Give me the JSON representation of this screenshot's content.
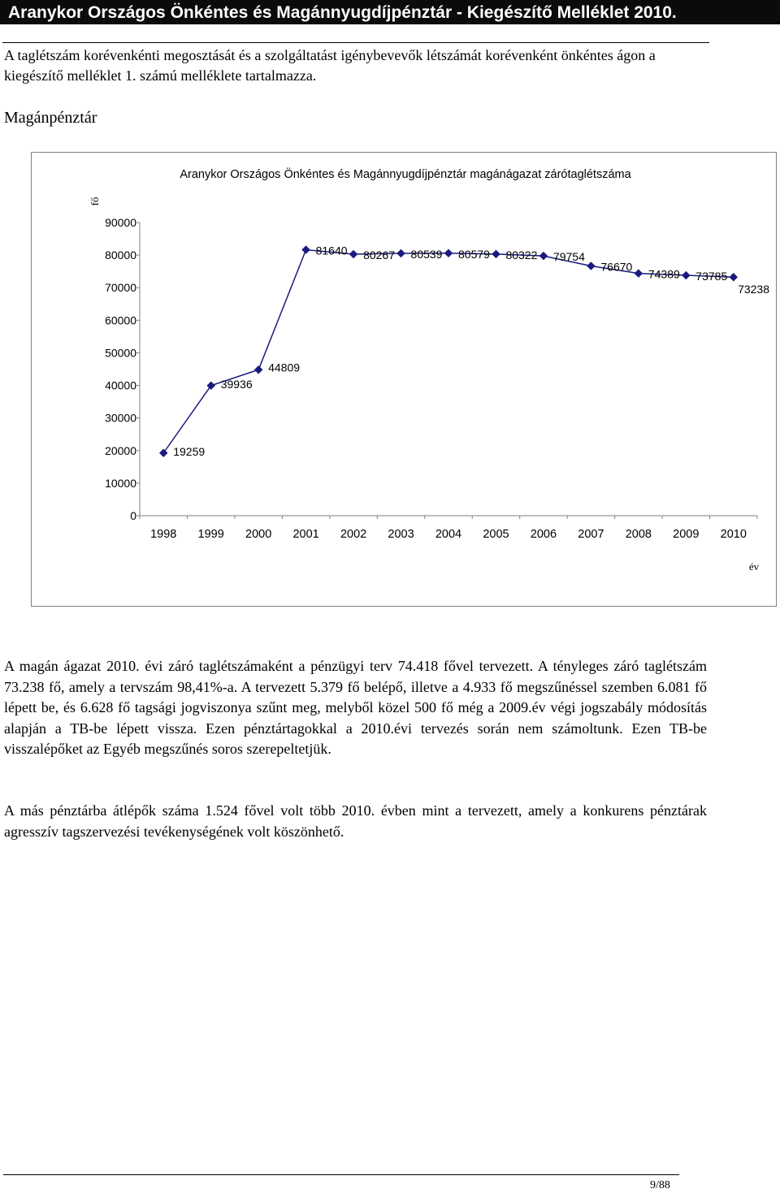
{
  "header": {
    "title": "Aranykor Országos Önkéntes és Magánnyugdíjpénztár  -  Kiegészítő Melléklet 2010."
  },
  "intro": "A taglétszám korévenkénti megosztását  és a szolgáltatást igénybevevők létszámát korévenként önkéntes ágon a kiegészítő melléklet 1. számú melléklete tartalmazza.",
  "section_title": "Magánpénztár",
  "chart_data": {
    "type": "line",
    "title": "Aranykor Országos Önkéntes és Magánnyugdíjpénztár magánágazat zárótaglétszáma",
    "xlabel": "év",
    "ylabel": "fő",
    "categories": [
      "1998",
      "1999",
      "2000",
      "2001",
      "2002",
      "2003",
      "2004",
      "2005",
      "2006",
      "2007",
      "2008",
      "2009",
      "2010"
    ],
    "values": [
      19259,
      39936,
      44809,
      81640,
      80267,
      80539,
      80579,
      80322,
      79754,
      76670,
      74389,
      73785,
      73238
    ],
    "ylim": [
      0,
      90000
    ],
    "yticks": [
      0,
      10000,
      20000,
      30000,
      40000,
      50000,
      60000,
      70000,
      80000,
      90000
    ],
    "color": "#1a1a80",
    "marker": "diamond",
    "grid": false,
    "legend": "none"
  },
  "paragraphs": [
    "A magán ágazat 2010. évi záró taglétszámaként a pénzügyi terv 74.418 fővel tervezett. A tényleges záró taglétszám 73.238 fő, amely a tervszám 98,41%-a. A tervezett 5.379 fő belépő, illetve a 4.933 fő megszűnéssel szemben 6.081 fő lépett be, és 6.628 fő tagsági jogviszonya szűnt meg, melyből közel 500 fő még a 2009.év végi jogszabály módosítás alapján a TB-be lépett vissza. Ezen pénztártagokkal a 2010.évi tervezés során nem számoltunk. Ezen TB-be visszalépőket az Egyéb megszűnés soros szerepeltetjük.",
    "A más pénztárba átlépők száma 1.524 fővel volt több 2010. évben mint a tervezett, amely a konkurens pénztárak agresszív tagszervezési tevékenységének volt köszönhető."
  ],
  "footer": {
    "page": "9/88"
  }
}
